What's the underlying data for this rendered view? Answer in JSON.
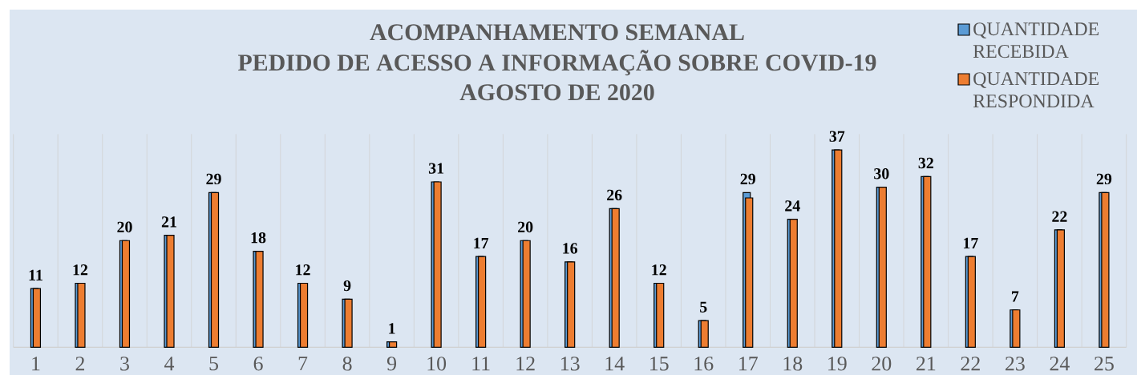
{
  "chart_data": {
    "type": "bar",
    "title": "ACOMPANHAMENTO SEMANAL",
    "subtitle": "PEDIDO DE ACESSO A INFORMAÇÃO SOBRE COVID-19",
    "annotations": [
      "AGOSTO DE 2020"
    ],
    "categories": [
      "1",
      "2",
      "3",
      "4",
      "5",
      "6",
      "7",
      "8",
      "9",
      "10",
      "11",
      "12",
      "13",
      "14",
      "15",
      "16",
      "17",
      "18",
      "19",
      "20",
      "21",
      "22",
      "23",
      "24",
      "25"
    ],
    "series": [
      {
        "name": "QUANTIDADE RECEBIDA",
        "color": "#5b9bd5",
        "values": [
          11,
          12,
          20,
          21,
          29,
          18,
          12,
          9,
          1,
          31,
          17,
          20,
          16,
          26,
          12,
          5,
          29,
          24,
          37,
          30,
          32,
          17,
          7,
          22,
          29
        ],
        "value_labels": [
          "11",
          "12",
          "20",
          "21",
          "29",
          "18",
          "12",
          "9",
          "1",
          "31",
          "17",
          "20",
          "16",
          "26",
          "12",
          "5",
          "29",
          "24",
          "37",
          "30",
          "32",
          "17",
          "7",
          "22",
          "29"
        ]
      },
      {
        "name": "QUANTIDADE RESPONDIDA",
        "color": "#ed7d31",
        "values": [
          11,
          12,
          20,
          21,
          29,
          18,
          12,
          9,
          1,
          31,
          17,
          20,
          16,
          26,
          12,
          5,
          28,
          24,
          37,
          30,
          32,
          17,
          7,
          22,
          29
        ]
      }
    ],
    "grid": "x",
    "legend": "top right",
    "tick_labels": "x"
  }
}
